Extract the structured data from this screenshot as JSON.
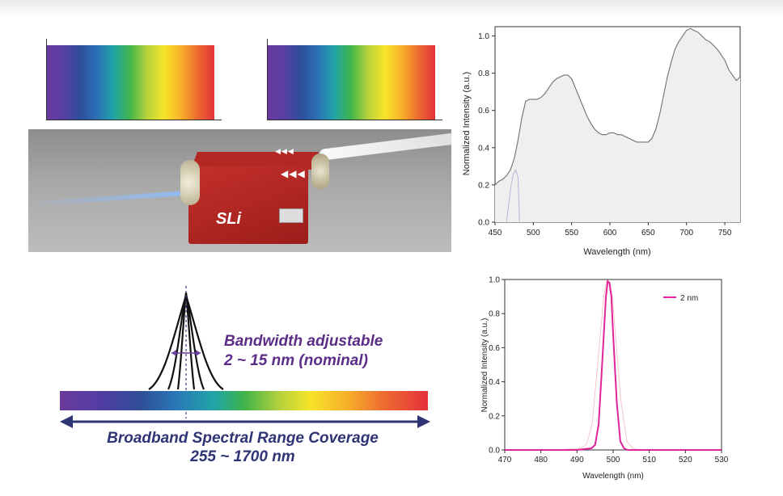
{
  "annotations": {
    "bandwidth_title": "Bandwidth adjustable",
    "bandwidth_range": "2 ~ 15 nm (nominal)",
    "coverage_title": "Broadband Spectral Range Coverage",
    "coverage_range": "255 ~ 1700 nm"
  },
  "device": {
    "logo": "SLi",
    "front_arrows": "◀◀◀",
    "top_arrows": "◀◀◀"
  },
  "colors": {
    "gray_fill": "#efefef",
    "gray_line": "#707070",
    "pink_line": "#e0249a",
    "arrow_navy": "#2f3475",
    "text_purple": "#5b2d86"
  },
  "chart_data": [
    {
      "type": "area",
      "title": "",
      "xlabel": "Wavelength (nm)",
      "ylabel": "Normalized Intensity (a.u.)",
      "xlim": [
        450,
        770
      ],
      "ylim": [
        0,
        1.05
      ],
      "xticks": [
        "450",
        "500",
        "550",
        "600",
        "650",
        "700",
        "750"
      ],
      "yticks": [
        "0.0",
        "0.2",
        "0.4",
        "0.6",
        "0.8",
        "1.0"
      ],
      "xtick_values": [
        450,
        500,
        550,
        600,
        650,
        700,
        750
      ],
      "ytick_values": [
        0,
        0.2,
        0.4,
        0.6,
        0.8,
        1.0
      ],
      "series": [
        {
          "x": [
            450,
            455,
            460,
            465,
            470,
            475,
            480,
            485,
            490,
            495,
            500,
            505,
            510,
            515,
            520,
            525,
            530,
            535,
            540,
            545,
            550,
            555,
            560,
            565,
            570,
            575,
            580,
            585,
            590,
            595,
            600,
            605,
            610,
            615,
            620,
            625,
            630,
            635,
            640,
            645,
            650,
            655,
            660,
            665,
            670,
            675,
            680,
            685,
            690,
            695,
            700,
            705,
            710,
            715,
            720,
            725,
            730,
            735,
            740,
            745,
            750,
            755,
            760,
            765,
            770
          ],
          "y": [
            0.2,
            0.22,
            0.23,
            0.25,
            0.28,
            0.34,
            0.44,
            0.56,
            0.65,
            0.66,
            0.66,
            0.66,
            0.67,
            0.69,
            0.72,
            0.75,
            0.77,
            0.78,
            0.79,
            0.79,
            0.77,
            0.72,
            0.67,
            0.62,
            0.57,
            0.53,
            0.5,
            0.48,
            0.47,
            0.47,
            0.48,
            0.48,
            0.47,
            0.47,
            0.46,
            0.45,
            0.44,
            0.43,
            0.43,
            0.43,
            0.43,
            0.45,
            0.5,
            0.58,
            0.68,
            0.78,
            0.86,
            0.93,
            0.97,
            1.0,
            1.03,
            1.04,
            1.03,
            1.02,
            1.0,
            0.98,
            0.97,
            0.95,
            0.93,
            0.9,
            0.87,
            0.82,
            0.79,
            0.76,
            0.78
          ]
        },
        {
          "x": [
            465,
            468,
            471,
            474,
            477,
            480,
            482
          ],
          "y": [
            0.0,
            0.1,
            0.2,
            0.26,
            0.28,
            0.24,
            0.0
          ]
        }
      ]
    },
    {
      "type": "line",
      "title": "",
      "xlabel": "Wavelength (nm)",
      "ylabel": "Normalized Intensity (a.u.)",
      "xlim": [
        470,
        530
      ],
      "ylim": [
        0,
        1.0
      ],
      "xticks": [
        "470",
        "480",
        "490",
        "500",
        "510",
        "520",
        "530"
      ],
      "yticks": [
        "0.0",
        "0.2",
        "0.4",
        "0.6",
        "0.8",
        "1.0"
      ],
      "xtick_values": [
        470,
        480,
        490,
        500,
        510,
        520,
        530
      ],
      "ytick_values": [
        0,
        0.2,
        0.4,
        0.6,
        0.8,
        1.0
      ],
      "legend": "top-right",
      "series": [
        {
          "name": "2 nm",
          "x": [
            470,
            480,
            490,
            494,
            495,
            496,
            497,
            498,
            498.5,
            499,
            499.5,
            500,
            501,
            502,
            503,
            504,
            510,
            520,
            530
          ],
          "y": [
            0.0,
            0.0,
            0.0,
            0.01,
            0.03,
            0.15,
            0.52,
            0.9,
            0.99,
            0.98,
            0.9,
            0.68,
            0.28,
            0.05,
            0.01,
            0.0,
            0.0,
            0.0,
            0.0
          ]
        }
      ]
    }
  ]
}
